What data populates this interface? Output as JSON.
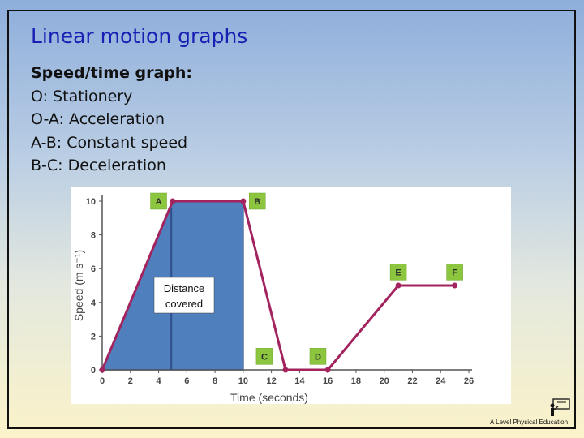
{
  "slide": {
    "title": "Linear motion graphs",
    "subtitle": "Speed/time graph:",
    "lines": [
      "O: Stationery",
      "O-A: Acceleration",
      "A-B: Constant speed",
      "B-C: Deceleration"
    ],
    "logo_text": "A Level Physical Education"
  },
  "chart_data": {
    "type": "line",
    "title": "",
    "xlabel": "Time (seconds)",
    "ylabel": "Speed (m s⁻¹)",
    "xlim": [
      0,
      26
    ],
    "ylim": [
      0,
      10
    ],
    "xticks": [
      0,
      2,
      4,
      6,
      8,
      10,
      12,
      14,
      16,
      18,
      20,
      22,
      24,
      26
    ],
    "yticks": [
      0,
      2,
      4,
      6,
      8,
      10
    ],
    "series": [
      {
        "color": "#a3235e",
        "x": [
          0,
          5,
          10,
          13,
          16,
          21,
          25
        ],
        "y": [
          0,
          10,
          10,
          0,
          0,
          5,
          5
        ]
      }
    ],
    "point_labels": [
      {
        "text": "A",
        "x": 4,
        "y": 10
      },
      {
        "text": "B",
        "x": 11,
        "y": 10
      },
      {
        "text": "C",
        "x": 11.5,
        "y": 0.8
      },
      {
        "text": "D",
        "x": 15.3,
        "y": 0.8
      },
      {
        "text": "E",
        "x": 21,
        "y": 5.8
      },
      {
        "text": "F",
        "x": 25,
        "y": 5.8
      }
    ],
    "shaded_area": {
      "label": "Distance covered",
      "x": [
        0,
        5,
        10,
        10,
        0
      ],
      "y": [
        0,
        10,
        10,
        0,
        0
      ],
      "color": "#4f7fbd",
      "divider_x": 4.9
    },
    "grid": false
  }
}
